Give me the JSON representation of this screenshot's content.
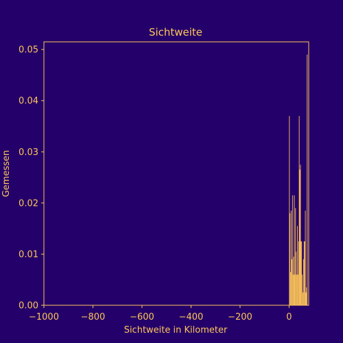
{
  "colors": {
    "background": "#24006a",
    "foreground": "#ffc759",
    "bars": "#ffc759"
  },
  "chart_data": {
    "type": "bar",
    "title": "Sichtweite",
    "xlabel": "Sichtweite in Kilometer",
    "ylabel": "Gemessen",
    "xlim": [
      -1000,
      80
    ],
    "ylim": [
      0,
      0.0515
    ],
    "grid": false,
    "legend": "none",
    "xticks": [
      -1000,
      -800,
      -600,
      -400,
      -200,
      0
    ],
    "xtick_labels": [
      "−1000",
      "−800",
      "−600",
      "−400",
      "−200",
      "0"
    ],
    "yticks": [
      0,
      0.01,
      0.02,
      0.03,
      0.04,
      0.05
    ],
    "ytick_labels": [
      "0.00",
      "0.01",
      "0.02",
      "0.03",
      "0.04",
      "0.05"
    ],
    "bin_width": 2.5,
    "bin_starts": [
      0,
      2.5,
      5,
      7.5,
      10,
      12.5,
      15,
      17.5,
      20,
      22.5,
      25,
      27.5,
      30,
      32.5,
      35,
      37.5,
      40,
      42.5,
      45,
      47.5,
      50,
      52.5,
      55,
      57.5,
      60,
      62.5,
      65,
      67.5,
      70,
      72.5
    ],
    "values": [
      0.037,
      0.018,
      0.0065,
      0.0185,
      0.009,
      0.0215,
      0.006,
      0.0095,
      0.0215,
      0.006,
      0.019,
      0.0105,
      0.006,
      0.0155,
      0.006,
      0.0125,
      0.037,
      0.0265,
      0.0275,
      0.0125,
      0.0125,
      0.006,
      0.0025,
      0.009,
      0.0125,
      0.0125,
      0.0185,
      0.0025,
      0.0035,
      0.049
    ]
  }
}
